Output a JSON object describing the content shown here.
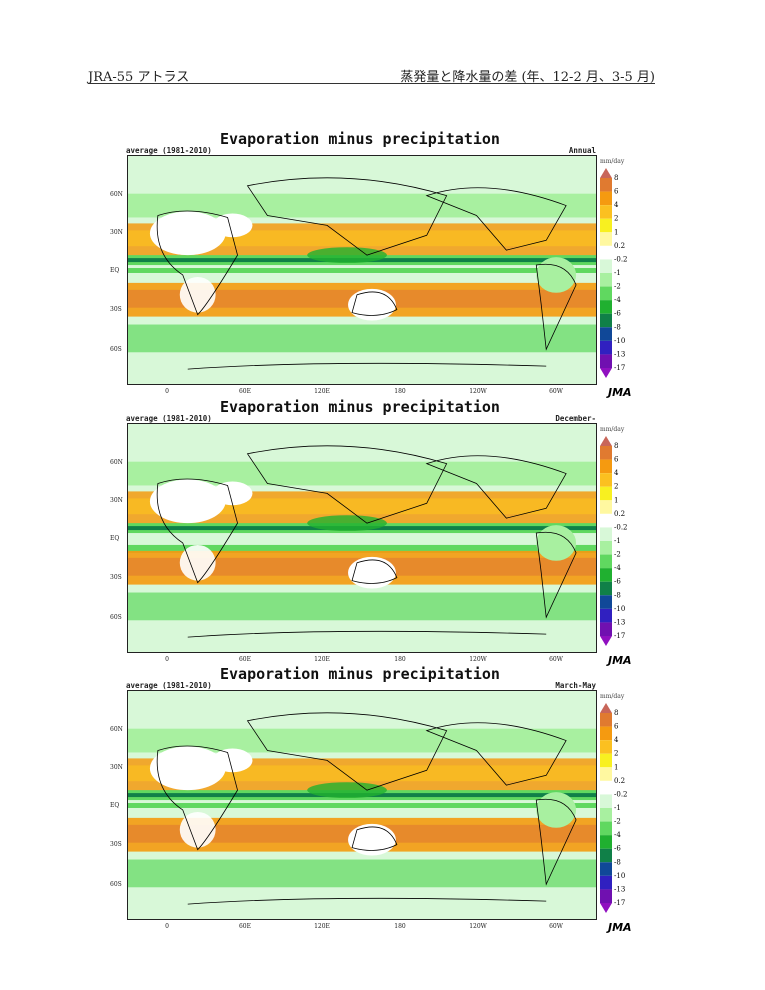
{
  "header": {
    "left": "JRA-55 アトラス",
    "right": "蒸発量と降水量の差 (年、12-2 月、3-5 月)"
  },
  "panels": [
    {
      "title": "Evaporation minus precipitation",
      "period": "average (1981-2010)",
      "season": "Annual"
    },
    {
      "title": "Evaporation minus precipitation",
      "period": "average (1981-2010)",
      "season": "December-February"
    },
    {
      "title": "Evaporation minus precipitation",
      "period": "average (1981-2010)",
      "season": "March-May"
    }
  ],
  "lat_labels": [
    "60N",
    "30N",
    "EQ",
    "30S",
    "60S"
  ],
  "lon_labels": [
    "0",
    "60E",
    "120E",
    "180",
    "120W",
    "60W"
  ],
  "colorbar": {
    "unit": "mm/day",
    "levels": [
      "8",
      "6",
      "4",
      "2",
      "1",
      "0.2",
      "-0.2",
      "-1",
      "-2",
      "-4",
      "-6",
      "-8",
      "-10",
      "-13",
      "-17"
    ],
    "colors": [
      "#c8665a",
      "#e07a30",
      "#f59a10",
      "#fbc020",
      "#f8f020",
      "#fff8a0",
      "#ffffff",
      "#d8f8d8",
      "#a8f0a0",
      "#60d860",
      "#20b030",
      "#108048",
      "#104898",
      "#3020c0",
      "#7010b0",
      "#9010c0"
    ]
  },
  "logo": "JMA"
}
